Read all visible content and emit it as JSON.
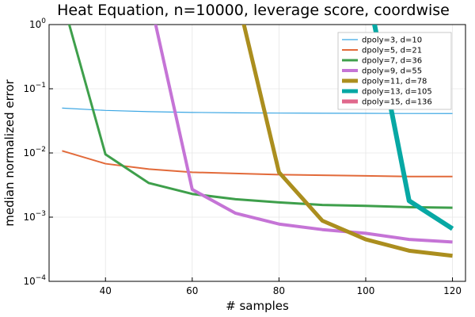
{
  "chart_data": {
    "type": "line",
    "title": "Heat Equation, n=10000, leverage score, coordwise",
    "xlabel": "# samples",
    "ylabel": "median normalized error",
    "xlim": [
      27,
      123
    ],
    "ylim": [
      0.0001,
      1
    ],
    "yscale": "log",
    "xticks": [
      40,
      60,
      80,
      100,
      120
    ],
    "yticks": [
      {
        "value": 0.0001,
        "base": "10",
        "exp": "−4"
      },
      {
        "value": 0.001,
        "base": "10",
        "exp": "−3"
      },
      {
        "value": 0.01,
        "base": "10",
        "exp": "−2"
      },
      {
        "value": 0.1,
        "base": "10",
        "exp": "−1"
      },
      {
        "value": 1,
        "base": "10",
        "exp": "0"
      }
    ],
    "grid": true,
    "legend_position": "top-right",
    "series": [
      {
        "name": "dpoly=3, d=10",
        "color": "#3ba6e3",
        "width": 1.2,
        "x": [
          30,
          40,
          50,
          60,
          70,
          80,
          90,
          100,
          110,
          120
        ],
        "y": [
          0.05,
          0.046,
          0.044,
          0.0428,
          0.0422,
          0.0418,
          0.0416,
          0.0414,
          0.0412,
          0.0411
        ]
      },
      {
        "name": "dpoly=5, d=21",
        "color": "#e26a3a",
        "width": 2,
        "x": [
          30,
          40,
          50,
          60,
          70,
          80,
          90,
          100,
          110,
          120
        ],
        "y": [
          0.0108,
          0.0068,
          0.0056,
          0.005,
          0.0048,
          0.0046,
          0.0045,
          0.0044,
          0.0043,
          0.0043
        ]
      },
      {
        "name": "dpoly=7, d=36",
        "color": "#3e9f4b",
        "width": 3,
        "x": [
          30,
          40,
          50,
          60,
          70,
          80,
          90,
          100,
          110,
          120
        ],
        "y": [
          2.5,
          0.0095,
          0.0034,
          0.0023,
          0.0019,
          0.0017,
          0.00155,
          0.0015,
          0.00143,
          0.0014
        ]
      },
      {
        "name": "dpoly=9, d=55",
        "color": "#c574d6",
        "width": 4,
        "x": [
          50,
          60,
          70,
          80,
          90,
          100,
          110,
          120
        ],
        "y": [
          3.0,
          0.0027,
          0.00115,
          0.00078,
          0.00064,
          0.00056,
          0.00045,
          0.00041
        ]
      },
      {
        "name": "dpoly=11, d=78",
        "color": "#ab8e1e",
        "width": 5,
        "x": [
          70,
          80,
          90,
          100,
          110,
          120
        ],
        "y": [
          3.5,
          0.005,
          0.00088,
          0.00045,
          0.0003,
          0.00025
        ]
      },
      {
        "name": "dpoly=13, d=105",
        "color": "#07a8a4",
        "width": 6,
        "x": [
          100,
          110,
          120
        ],
        "y": [
          5.0,
          0.0018,
          0.00066
        ]
      },
      {
        "name": "dpoly=15, d=136",
        "color": "#e0688c",
        "width": 6,
        "x": [],
        "y": []
      }
    ]
  }
}
